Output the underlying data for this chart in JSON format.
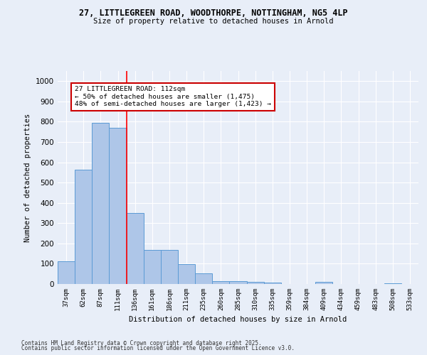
{
  "title1": "27, LITTLEGREEN ROAD, WOODTHORPE, NOTTINGHAM, NG5 4LP",
  "title2": "Size of property relative to detached houses in Arnold",
  "xlabel": "Distribution of detached houses by size in Arnold",
  "ylabel": "Number of detached properties",
  "categories": [
    "37sqm",
    "62sqm",
    "87sqm",
    "111sqm",
    "136sqm",
    "161sqm",
    "186sqm",
    "211sqm",
    "235sqm",
    "260sqm",
    "285sqm",
    "310sqm",
    "335sqm",
    "359sqm",
    "384sqm",
    "409sqm",
    "434sqm",
    "459sqm",
    "483sqm",
    "508sqm",
    "533sqm"
  ],
  "values": [
    112,
    565,
    795,
    770,
    350,
    168,
    168,
    98,
    52,
    15,
    13,
    10,
    8,
    0,
    0,
    10,
    0,
    0,
    0,
    5,
    0
  ],
  "bar_color": "#aec6e8",
  "bar_edge_color": "#5b9bd5",
  "annotation_text": "27 LITTLEGREEN ROAD: 112sqm\n← 50% of detached houses are smaller (1,475)\n48% of semi-detached houses are larger (1,423) →",
  "annotation_box_color": "#ffffff",
  "annotation_edge_color": "#cc0000",
  "footer1": "Contains HM Land Registry data © Crown copyright and database right 2025.",
  "footer2": "Contains public sector information licensed under the Open Government Licence v3.0.",
  "ylim": [
    0,
    1050
  ],
  "yticks": [
    0,
    100,
    200,
    300,
    400,
    500,
    600,
    700,
    800,
    900,
    1000
  ],
  "background_color": "#e8eef8",
  "redline_index": 3.5
}
